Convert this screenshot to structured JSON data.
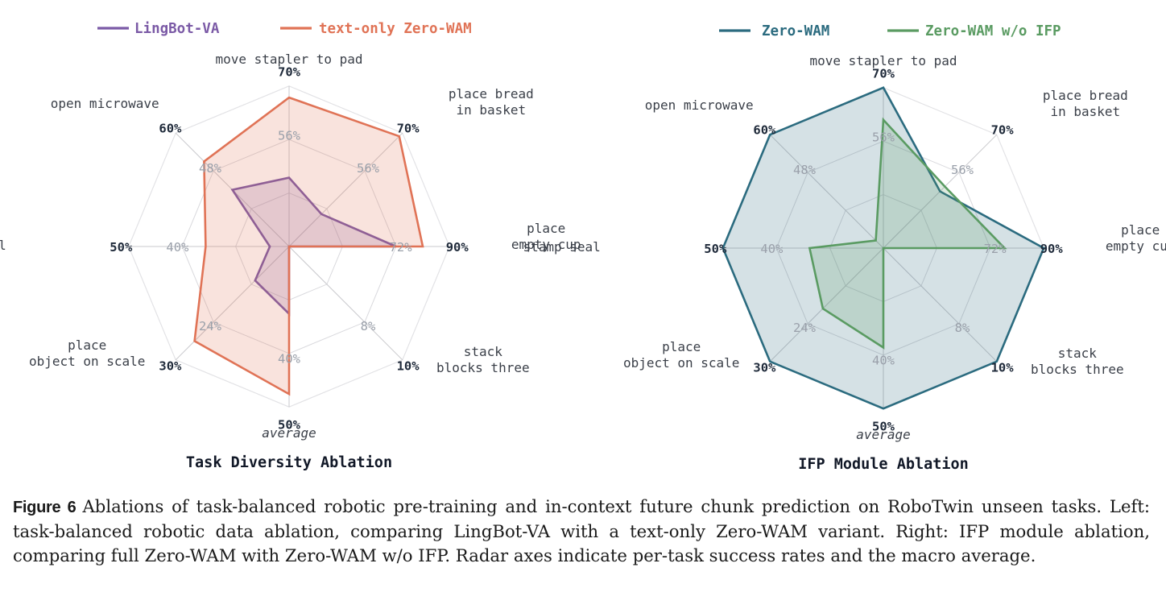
{
  "chart_data": [
    {
      "type": "radar",
      "title": "Task Diversity Ablation",
      "axes": [
        "move stapler to pad",
        "place bread\nin basket",
        "place\nempty cup",
        "stack\nblocks three",
        "average",
        "place\nobject on scale",
        "stamp seal",
        "open microwave"
      ],
      "axis_max_labels": [
        "70%",
        "70%",
        "90%",
        "10%",
        "50%",
        "30%",
        "50%",
        "60%"
      ],
      "axis_max": [
        70,
        70,
        90,
        10,
        50,
        30,
        50,
        60
      ],
      "inner_tick_labels": [
        "56%",
        "56%",
        "72%",
        "8%",
        "40%",
        "24%",
        "40%",
        "48%"
      ],
      "italic_axes": [
        "average"
      ],
      "legend_position": "top",
      "series": [
        {
          "name": "LingBot-VA",
          "color": "#7b5aa6",
          "values": [
            30,
            20,
            60,
            0,
            21,
            9,
            6,
            30
          ]
        },
        {
          "name": "text-only Zero-WAM",
          "color": "#e07356",
          "values": [
            65,
            68,
            75,
            0,
            46,
            25,
            26,
            45
          ]
        }
      ]
    },
    {
      "type": "radar",
      "title": "IFP Module Ablation",
      "axes": [
        "move stapler to pad",
        "place bread\nin basket",
        "place\nempty cup",
        "stack\nblocks three",
        "average",
        "place\nobject on scale",
        "stamp seal",
        "open microwave"
      ],
      "axis_max_labels": [
        "70%",
        "70%",
        "90%",
        "10%",
        "50%",
        "30%",
        "50%",
        "60%"
      ],
      "axis_max": [
        70,
        70,
        90,
        10,
        50,
        30,
        50,
        60
      ],
      "inner_tick_labels": [
        "56%",
        "56%",
        "72%",
        "8%",
        "40%",
        "24%",
        "40%",
        "48%"
      ],
      "italic_axes": [
        "average"
      ],
      "legend_position": "top",
      "series": [
        {
          "name": "Zero-WAM",
          "color": "#2b6b7f",
          "values": [
            70,
            35,
            90,
            10,
            50,
            30,
            50,
            60
          ]
        },
        {
          "name": "Zero-WAM w/o IFP",
          "color": "#5a9b62",
          "values": [
            56,
            38,
            68,
            0,
            31,
            16,
            23,
            4
          ]
        }
      ]
    }
  ],
  "caption": {
    "lead": "Figure 6",
    "text": "Ablations of task-balanced robotic pre-training and in-context future chunk prediction on RoboTwin unseen tasks. Left: task-balanced robotic data ablation, comparing LingBot-VA with a text-only Zero-WAM variant. Right: IFP module ablation, comparing full Zero-WAM with Zero-WAM w/o IFP. Radar axes indicate per-task success rates and the macro average."
  }
}
